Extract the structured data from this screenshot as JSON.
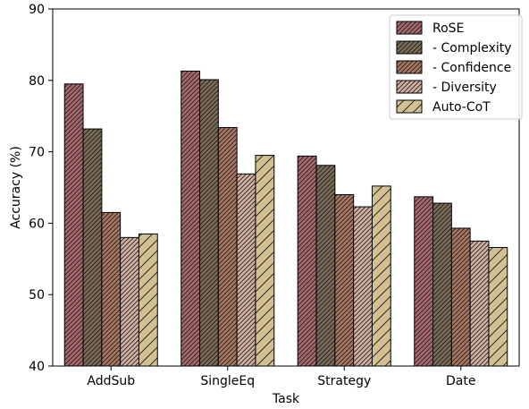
{
  "chart_data": {
    "type": "bar",
    "xlabel": "Task",
    "ylabel": "Accuracy (%)",
    "ylim": [
      40,
      90
    ],
    "yticks": [
      40,
      50,
      60,
      70,
      80,
      90
    ],
    "categories": [
      "AddSub",
      "SingleEq",
      "Strategy",
      "Date"
    ],
    "grid": false,
    "legend_position": "top-right",
    "series": [
      {
        "name": "RoSE",
        "color": "#a8696d",
        "hatch": "dense-diagonal",
        "values": [
          79.5,
          81.3,
          69.4,
          63.7
        ]
      },
      {
        "name": "- Complexity",
        "color": "#7b6c57",
        "hatch": "dense-diagonal",
        "values": [
          73.2,
          80.1,
          68.1,
          62.8
        ]
      },
      {
        "name": "- Confidence",
        "color": "#a9775f",
        "hatch": "dense-diagonal",
        "values": [
          61.5,
          73.4,
          64.0,
          59.3
        ]
      },
      {
        "name": "- Diversity",
        "color": "#d2b1a3",
        "hatch": "dense-diagonal",
        "values": [
          58.0,
          66.9,
          62.3,
          57.5
        ]
      },
      {
        "name": "Auto-CoT",
        "color": "#d2bf92",
        "hatch": "sparse-diagonal",
        "values": [
          58.5,
          69.5,
          65.2,
          56.6
        ]
      }
    ]
  }
}
